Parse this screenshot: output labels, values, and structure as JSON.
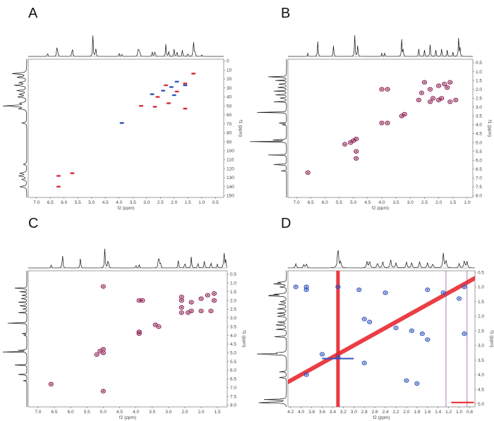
{
  "colors": {
    "positive": "#d92b3a",
    "negative": "#3355bb",
    "plum": "#8b2252",
    "diag": "#e8232b",
    "proj": "#111111"
  },
  "chart_data": [
    {
      "letter": "A",
      "type": "scatter",
      "subtype": "HSQC",
      "xlabel": "f2 (ppm)",
      "ylabel": "f1 (ppm)",
      "xlim": [
        7.3,
        0.2
      ],
      "ylim": [
        -2,
        152
      ],
      "xticks": [
        "7.0",
        "6.5",
        "6.0",
        "5.5",
        "5.0",
        "4.5",
        "4.0",
        "3.5",
        "3.0",
        "2.5",
        "2.0",
        "1.5",
        "1.0",
        "0.5"
      ],
      "yticks": [
        "0",
        "10",
        "20",
        "30",
        "40",
        "50",
        "60",
        "70",
        "80",
        "90",
        "100",
        "110",
        "120",
        "130",
        "140",
        "150"
      ],
      "xticks_vals": [
        7.0,
        6.5,
        6.0,
        5.5,
        5.0,
        4.5,
        4.0,
        3.5,
        3.0,
        2.5,
        2.0,
        1.5,
        1.0,
        0.5
      ],
      "yticks_vals": [
        0,
        10,
        20,
        30,
        40,
        50,
        60,
        70,
        80,
        90,
        100,
        110,
        120,
        130,
        140,
        150
      ],
      "series": [
        {
          "name": "positive",
          "color": "#d92b3a",
          "points": [
            [
              1.3,
              14
            ],
            [
              1.6,
              25
            ],
            [
              2.3,
              27
            ],
            [
              1.9,
              34
            ],
            [
              2.6,
              40
            ],
            [
              3.2,
              50
            ],
            [
              2.7,
              51
            ],
            [
              2.2,
              47
            ],
            [
              1.6,
              53
            ],
            [
              6.2,
              128
            ],
            [
              5.7,
              125
            ],
            [
              6.2,
              140
            ]
          ]
        },
        {
          "name": "negative",
          "color": "#3355bb",
          "points": [
            [
              1.9,
              23
            ],
            [
              1.6,
              27
            ],
            [
              2.1,
              29
            ],
            [
              2.4,
              33
            ],
            [
              2.8,
              37
            ],
            [
              2.0,
              38
            ],
            [
              3.9,
              69
            ]
          ]
        }
      ]
    },
    {
      "letter": "B",
      "type": "scatter",
      "subtype": "COSY",
      "xlabel": "f2 (ppm)",
      "ylabel": "f1 (ppm)",
      "xlim": [
        7.3,
        0.8
      ],
      "ylim": [
        0.3,
        8.1
      ],
      "xticks": [
        "7.0",
        "6.5",
        "6.0",
        "5.5",
        "5.0",
        "4.5",
        "4.0",
        "3.5",
        "3.0",
        "2.5",
        "2.0",
        "1.5",
        "1.0"
      ],
      "yticks": [
        "0.5",
        "1.0",
        "1.5",
        "2.0",
        "2.5",
        "3.0",
        "3.5",
        "4.0",
        "4.5",
        "5.0",
        "5.5",
        "6.0",
        "6.5",
        "7.0",
        "7.5",
        "8.0"
      ],
      "xticks_vals": [
        7.0,
        6.5,
        6.0,
        5.5,
        5.0,
        4.5,
        4.0,
        3.5,
        3.0,
        2.5,
        2.0,
        1.5,
        1.0
      ],
      "yticks_vals": [
        0.5,
        1.0,
        1.5,
        2.0,
        2.5,
        3.0,
        3.5,
        4.0,
        4.5,
        5.0,
        5.5,
        6.0,
        6.5,
        7.0,
        7.5,
        8.0
      ],
      "series": [
        {
          "name": "cross-peaks",
          "color": "#8b2252",
          "points": [
            [
              1.6,
              1.6
            ],
            [
              1.8,
              1.7
            ],
            [
              2.0,
              1.8
            ],
            [
              2.3,
              2.0
            ],
            [
              2.6,
              2.2
            ],
            [
              2.2,
              2.5
            ],
            [
              1.9,
              2.5
            ],
            [
              1.6,
              2.7
            ],
            [
              2.7,
              2.6
            ],
            [
              2.3,
              2.7
            ],
            [
              2.0,
              2.6
            ],
            [
              1.4,
              2.6
            ],
            [
              1.7,
              1.9
            ],
            [
              2.5,
              1.6
            ],
            [
              3.3,
              3.5
            ],
            [
              3.2,
              3.4
            ],
            [
              4.0,
              3.9
            ],
            [
              3.8,
              3.9
            ],
            [
              4.0,
              2.0
            ],
            [
              3.8,
              2.0
            ],
            [
              5.0,
              4.9
            ],
            [
              5.1,
              5.0
            ],
            [
              5.3,
              5.1
            ],
            [
              4.9,
              4.8
            ],
            [
              4.9,
              5.5
            ],
            [
              4.9,
              5.9
            ],
            [
              6.6,
              6.7
            ]
          ]
        }
      ]
    },
    {
      "letter": "C",
      "type": "scatter",
      "subtype": "TOCSY",
      "xlabel": "f2 (ppm)",
      "ylabel": "f1 (ppm)",
      "xlim": [
        7.3,
        1.2
      ],
      "ylim": [
        0.3,
        8.1
      ],
      "xticks": [
        "7.0",
        "6.5",
        "6.0",
        "5.5",
        "5.0",
        "4.5",
        "4.0",
        "3.5",
        "3.0",
        "2.5",
        "2.0",
        "1.5"
      ],
      "yticks": [
        "0.5",
        "1.0",
        "1.5",
        "2.0",
        "2.5",
        "3.0",
        "3.5",
        "4.0",
        "4.5",
        "5.0",
        "5.5",
        "6.0",
        "6.5",
        "7.0",
        "7.5",
        "8.0"
      ],
      "xticks_vals": [
        7.0,
        6.5,
        6.0,
        5.5,
        5.0,
        4.5,
        4.0,
        3.5,
        3.0,
        2.5,
        2.0,
        1.5
      ],
      "yticks_vals": [
        0.5,
        1.0,
        1.5,
        2.0,
        2.5,
        3.0,
        3.5,
        4.0,
        4.5,
        5.0,
        5.5,
        6.0,
        6.5,
        7.0,
        7.5,
        8.0
      ],
      "series": [
        {
          "name": "cross-peaks",
          "color": "#8b2252",
          "points": [
            [
              1.6,
              1.6
            ],
            [
              1.8,
              1.7
            ],
            [
              2.0,
              1.9
            ],
            [
              2.3,
              2.1
            ],
            [
              2.6,
              2.4
            ],
            [
              2.3,
              2.6
            ],
            [
              2.0,
              2.6
            ],
            [
              1.7,
              2.6
            ],
            [
              2.6,
              2.7
            ],
            [
              2.4,
              2.7
            ],
            [
              2.6,
              1.8
            ],
            [
              2.6,
              2.0
            ],
            [
              1.6,
              2.0
            ],
            [
              3.4,
              3.4
            ],
            [
              3.3,
              3.5
            ],
            [
              3.9,
              3.8
            ],
            [
              3.9,
              3.9
            ],
            [
              3.8,
              2.0
            ],
            [
              3.9,
              2.0
            ],
            [
              5.0,
              5.0
            ],
            [
              5.1,
              4.9
            ],
            [
              5.2,
              5.1
            ],
            [
              5.0,
              4.8
            ],
            [
              5.0,
              1.2
            ],
            [
              5.0,
              7.2
            ],
            [
              6.6,
              6.8
            ]
          ]
        }
      ]
    },
    {
      "letter": "D",
      "type": "scatter",
      "subtype": "NOESY",
      "xlabel": "f2 (ppm)",
      "ylabel": "f1 (ppm)",
      "xlim": [
        4.25,
        0.7
      ],
      "ylim": [
        0.45,
        5.1
      ],
      "xticks": [
        "4.2",
        "4.0",
        "3.8",
        "3.6",
        "3.4",
        "3.2",
        "3.0",
        "2.8",
        "2.6",
        "2.4",
        "2.2",
        "2.0",
        "1.8",
        "1.6",
        "1.4",
        "1.2",
        "1.0",
        "0.8"
      ],
      "yticks": [
        "0.5",
        "1.0",
        "1.5",
        "2.0",
        "2.5",
        "3.0",
        "3.5",
        "4.0",
        "4.5",
        "5.0"
      ],
      "xticks_vals": [
        4.2,
        4.0,
        3.8,
        3.6,
        3.4,
        3.2,
        3.0,
        2.8,
        2.6,
        2.4,
        2.2,
        2.0,
        1.8,
        1.6,
        1.4,
        1.2,
        1.0,
        0.8
      ],
      "yticks_vals": [
        0.5,
        1.0,
        1.5,
        2.0,
        2.5,
        3.0,
        3.5,
        4.0,
        4.5,
        5.0
      ],
      "diagonal": [
        4.25,
        0.7
      ],
      "vertical_streaks_f2": [
        3.3,
        1.25,
        0.85
      ],
      "horizontal_streaks_f1": [
        3.45,
        4.95
      ],
      "series": [
        {
          "name": "negative",
          "color": "#3355bb",
          "points": [
            [
              4.1,
              1.0
            ],
            [
              3.9,
              1.0
            ],
            [
              3.9,
              1.1
            ],
            [
              3.3,
              1.0
            ],
            [
              2.9,
              1.1
            ],
            [
              2.4,
              1.2
            ],
            [
              1.6,
              1.1
            ],
            [
              1.3,
              1.2
            ],
            [
              1.0,
              1.4
            ],
            [
              0.9,
              1.0
            ],
            [
              0.9,
              2.6
            ],
            [
              2.8,
              2.1
            ],
            [
              2.7,
              2.2
            ],
            [
              2.2,
              2.4
            ],
            [
              1.9,
              2.5
            ],
            [
              1.7,
              2.6
            ],
            [
              1.6,
              2.8
            ],
            [
              2.8,
              3.6
            ],
            [
              2.0,
              4.2
            ],
            [
              1.8,
              4.3
            ],
            [
              3.6,
              3.3
            ],
            [
              3.3,
              3.4
            ],
            [
              3.9,
              4.0
            ]
          ]
        }
      ]
    }
  ]
}
